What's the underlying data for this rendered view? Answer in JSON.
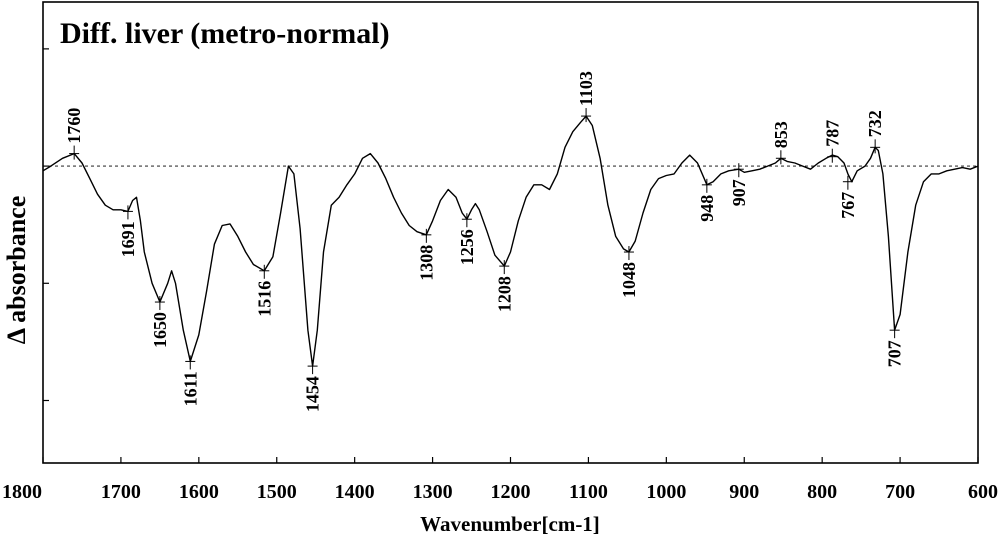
{
  "chart_data": {
    "type": "line",
    "title": "Diff. liver (metro-normal)",
    "xlabel": "Wavenumber[cm-1]",
    "ylabel": "Δ absorbance",
    "x_ticks": [
      "1800",
      "1700",
      "1600",
      "1500",
      "1400",
      "1300",
      "1200",
      "1100",
      "1000",
      "900",
      "800",
      "700",
      "600"
    ],
    "xlim": [
      1800,
      600
    ],
    "x_reversed": true,
    "ylim": [
      -1.9,
      1.05
    ],
    "y_ticks_unlabeled": [
      0.75,
      0.0,
      -0.75,
      -1.5
    ],
    "baseline": 0,
    "baseline_style": "dashed",
    "grid": false,
    "line_color": "#000000",
    "series": [
      {
        "x": [
          1800,
          1790,
          1775,
          1760,
          1750,
          1740,
          1730,
          1720,
          1710,
          1700,
          1691,
          1685,
          1680,
          1675,
          1670,
          1660,
          1650,
          1640,
          1635,
          1630,
          1620,
          1611,
          1600,
          1590,
          1580,
          1570,
          1560,
          1550,
          1540,
          1530,
          1516,
          1505,
          1495,
          1485,
          1478,
          1470,
          1460,
          1454,
          1448,
          1440,
          1430,
          1420,
          1410,
          1400,
          1390,
          1380,
          1370,
          1360,
          1350,
          1340,
          1330,
          1320,
          1308,
          1300,
          1290,
          1280,
          1270,
          1262,
          1256,
          1250,
          1245,
          1240,
          1230,
          1220,
          1208,
          1200,
          1190,
          1180,
          1170,
          1160,
          1150,
          1140,
          1130,
          1120,
          1110,
          1103,
          1095,
          1085,
          1075,
          1065,
          1055,
          1048,
          1040,
          1030,
          1020,
          1010,
          1000,
          990,
          980,
          970,
          960,
          948,
          940,
          930,
          920,
          907,
          900,
          890,
          880,
          870,
          860,
          853,
          845,
          835,
          825,
          815,
          805,
          795,
          787,
          780,
          772,
          767,
          762,
          755,
          745,
          738,
          732,
          728,
          722,
          715,
          707,
          700,
          690,
          680,
          670,
          660,
          650,
          640,
          630,
          620,
          610,
          600
        ],
        "y": [
          -0.03,
          0.0,
          0.05,
          0.08,
          0.02,
          -0.08,
          -0.18,
          -0.25,
          -0.28,
          -0.28,
          -0.29,
          -0.22,
          -0.2,
          -0.35,
          -0.55,
          -0.75,
          -0.87,
          -0.75,
          -0.67,
          -0.75,
          -1.05,
          -1.25,
          -1.08,
          -0.8,
          -0.5,
          -0.38,
          -0.37,
          -0.45,
          -0.55,
          -0.63,
          -0.67,
          -0.58,
          -0.3,
          0.0,
          -0.05,
          -0.4,
          -1.05,
          -1.28,
          -1.05,
          -0.55,
          -0.25,
          -0.2,
          -0.12,
          -0.05,
          0.05,
          0.08,
          0.02,
          -0.08,
          -0.2,
          -0.3,
          -0.38,
          -0.42,
          -0.44,
          -0.35,
          -0.22,
          -0.15,
          -0.2,
          -0.3,
          -0.34,
          -0.28,
          -0.24,
          -0.28,
          -0.42,
          -0.57,
          -0.64,
          -0.55,
          -0.35,
          -0.2,
          -0.12,
          -0.12,
          -0.15,
          -0.05,
          0.12,
          0.22,
          0.28,
          0.32,
          0.26,
          0.05,
          -0.25,
          -0.45,
          -0.53,
          -0.55,
          -0.48,
          -0.3,
          -0.15,
          -0.08,
          -0.06,
          -0.05,
          0.02,
          0.07,
          0.02,
          -0.12,
          -0.1,
          -0.05,
          -0.03,
          -0.02,
          -0.04,
          -0.03,
          -0.02,
          0.0,
          0.02,
          0.05,
          0.03,
          0.02,
          0.0,
          -0.02,
          0.02,
          0.05,
          0.07,
          0.06,
          0.02,
          -0.05,
          -0.1,
          -0.03,
          0.0,
          0.05,
          0.12,
          0.1,
          -0.05,
          -0.45,
          -1.05,
          -0.95,
          -0.55,
          -0.25,
          -0.1,
          -0.05,
          -0.05,
          -0.03,
          -0.02,
          -0.01,
          -0.02,
          0.0
        ]
      }
    ],
    "peak_labels": [
      {
        "label": "1760",
        "x": 1760,
        "y": 0.08,
        "side": "above"
      },
      {
        "label": "1691",
        "x": 1691,
        "y": -0.29,
        "side": "below"
      },
      {
        "label": "1650",
        "x": 1650,
        "y": -0.87,
        "side": "below"
      },
      {
        "label": "1611",
        "x": 1611,
        "y": -1.25,
        "side": "below"
      },
      {
        "label": "1516",
        "x": 1516,
        "y": -0.67,
        "side": "below"
      },
      {
        "label": "1454",
        "x": 1454,
        "y": -1.28,
        "side": "below"
      },
      {
        "label": "1308",
        "x": 1308,
        "y": -0.44,
        "side": "below"
      },
      {
        "label": "1256",
        "x": 1256,
        "y": -0.34,
        "side": "below"
      },
      {
        "label": "1208",
        "x": 1208,
        "y": -0.64,
        "side": "below"
      },
      {
        "label": "1103",
        "x": 1103,
        "y": 0.32,
        "side": "above"
      },
      {
        "label": "1048",
        "x": 1048,
        "y": -0.55,
        "side": "below"
      },
      {
        "label": "948",
        "x": 948,
        "y": -0.12,
        "side": "below"
      },
      {
        "label": "907",
        "x": 907,
        "y": -0.02,
        "side": "below"
      },
      {
        "label": "853",
        "x": 853,
        "y": 0.05,
        "side": "above"
      },
      {
        "label": "787",
        "x": 787,
        "y": 0.06,
        "side": "above"
      },
      {
        "label": "767",
        "x": 767,
        "y": -0.1,
        "side": "below"
      },
      {
        "label": "732",
        "x": 732,
        "y": 0.12,
        "side": "above"
      },
      {
        "label": "707",
        "x": 707,
        "y": -1.05,
        "side": "below"
      }
    ]
  }
}
